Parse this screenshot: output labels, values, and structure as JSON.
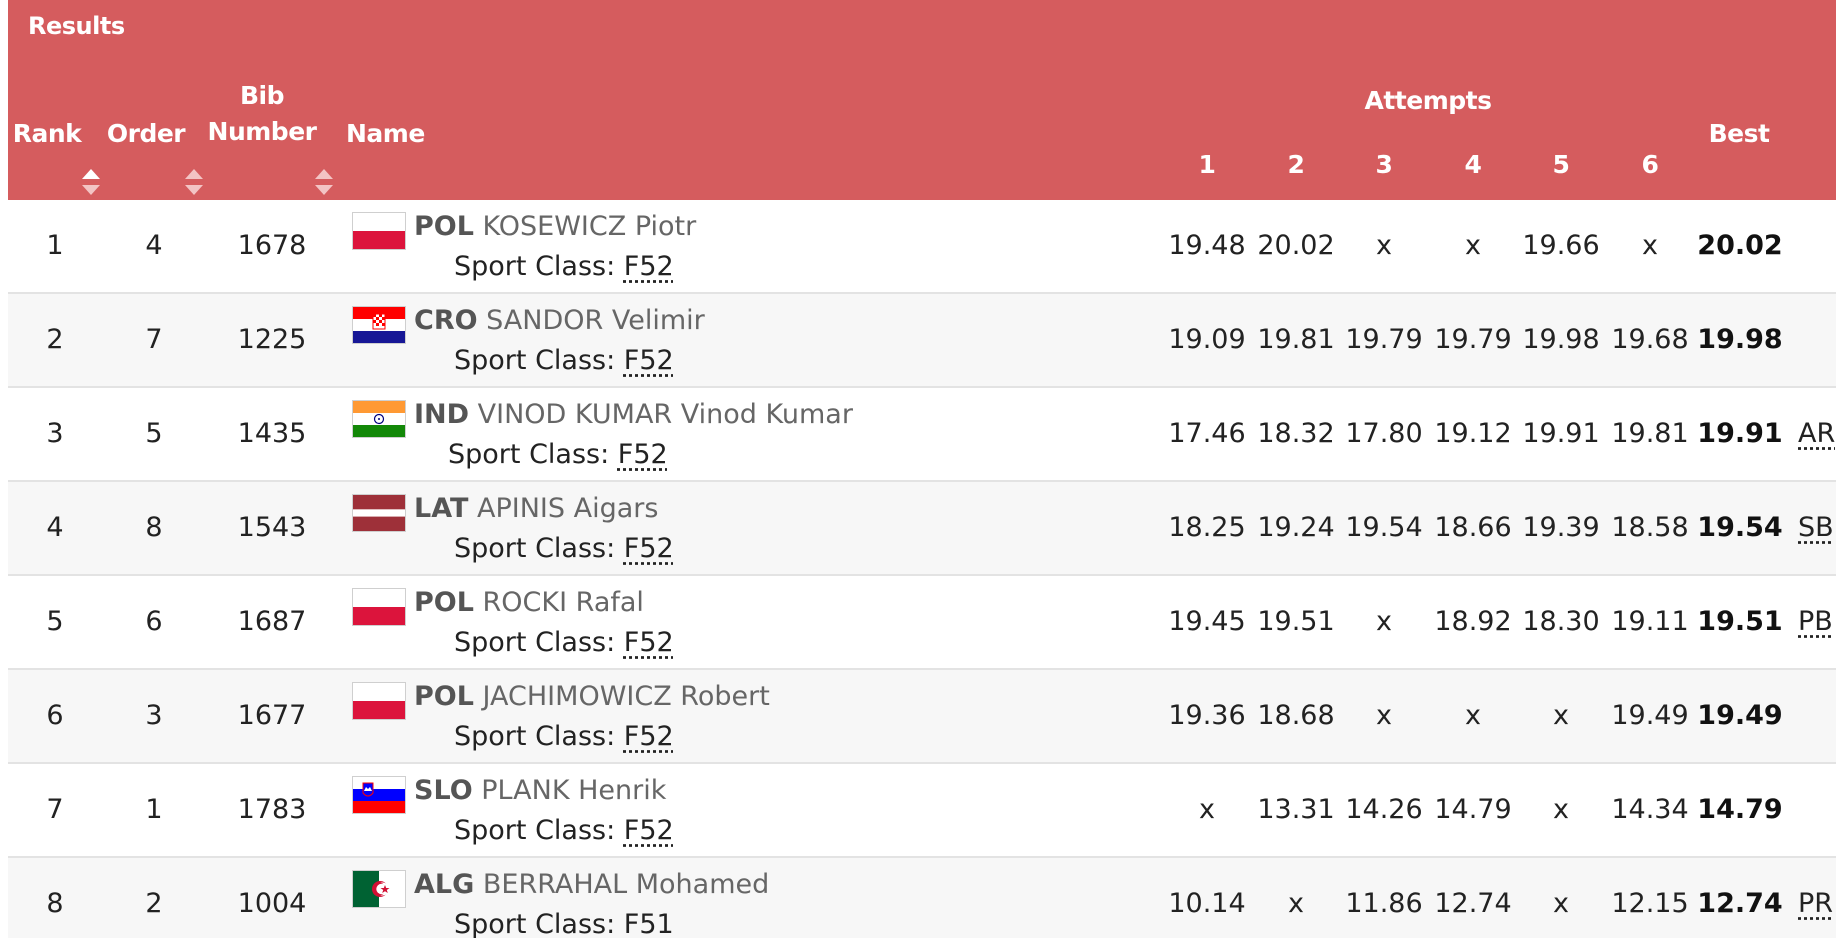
{
  "header": {
    "title": "Results",
    "columns": {
      "rank": "Rank",
      "order": "Order",
      "bib_line1": "Bib",
      "bib_line2": "Number",
      "name": "Name",
      "attempts": "Attempts",
      "attempt_numbers": [
        "1",
        "2",
        "3",
        "4",
        "5",
        "6"
      ],
      "best": "Best"
    }
  },
  "sport_class_label": "Sport Class:",
  "colors": {
    "header_bg": "#d55c5e",
    "header_text": "#ffffff",
    "row_alt_bg": "#f7f7f7"
  },
  "rows": [
    {
      "rank": "1",
      "order": "4",
      "bib": "1678",
      "noc": "POL",
      "name": "KOSEWICZ Piotr",
      "flag": "flag-poland",
      "sport_class": "F52",
      "attempts": [
        "19.48",
        "20.02",
        "x",
        "x",
        "19.66",
        "x"
      ],
      "best": "20.02",
      "record": ""
    },
    {
      "rank": "2",
      "order": "7",
      "bib": "1225",
      "noc": "CRO",
      "name": "SANDOR Velimir",
      "flag": "flag-croatia",
      "sport_class": "F52",
      "attempts": [
        "19.09",
        "19.81",
        "19.79",
        "19.79",
        "19.98",
        "19.68"
      ],
      "best": "19.98",
      "record": ""
    },
    {
      "rank": "3",
      "order": "5",
      "bib": "1435",
      "noc": "IND",
      "name": "VINOD KUMAR Vinod Kumar",
      "flag": "flag-india",
      "sport_class": "F52",
      "attempts": [
        "17.46",
        "18.32",
        "17.80",
        "19.12",
        "19.91",
        "19.81"
      ],
      "best": "19.91",
      "record": "AR"
    },
    {
      "rank": "4",
      "order": "8",
      "bib": "1543",
      "noc": "LAT",
      "name": "APINIS Aigars",
      "flag": "flag-latvia",
      "sport_class": "F52",
      "attempts": [
        "18.25",
        "19.24",
        "19.54",
        "18.66",
        "19.39",
        "18.58"
      ],
      "best": "19.54",
      "record": "SB"
    },
    {
      "rank": "5",
      "order": "6",
      "bib": "1687",
      "noc": "POL",
      "name": "ROCKI Rafal",
      "flag": "flag-poland",
      "sport_class": "F52",
      "attempts": [
        "19.45",
        "19.51",
        "x",
        "18.92",
        "18.30",
        "19.11"
      ],
      "best": "19.51",
      "record": "PB"
    },
    {
      "rank": "6",
      "order": "3",
      "bib": "1677",
      "noc": "POL",
      "name": "JACHIMOWICZ Robert",
      "flag": "flag-poland",
      "sport_class": "F52",
      "attempts": [
        "19.36",
        "18.68",
        "x",
        "x",
        "x",
        "19.49"
      ],
      "best": "19.49",
      "record": ""
    },
    {
      "rank": "7",
      "order": "1",
      "bib": "1783",
      "noc": "SLO",
      "name": "PLANK Henrik",
      "flag": "flag-slovenia",
      "sport_class": "F52",
      "attempts": [
        "x",
        "13.31",
        "14.26",
        "14.79",
        "x",
        "14.34"
      ],
      "best": "14.79",
      "record": ""
    },
    {
      "rank": "8",
      "order": "2",
      "bib": "1004",
      "noc": "ALG",
      "name": "BERRAHAL Mohamed",
      "flag": "flag-algeria",
      "sport_class": "F51",
      "attempts": [
        "10.14",
        "x",
        "11.86",
        "12.74",
        "x",
        "12.15"
      ],
      "best": "12.74",
      "record": "PR"
    }
  ]
}
